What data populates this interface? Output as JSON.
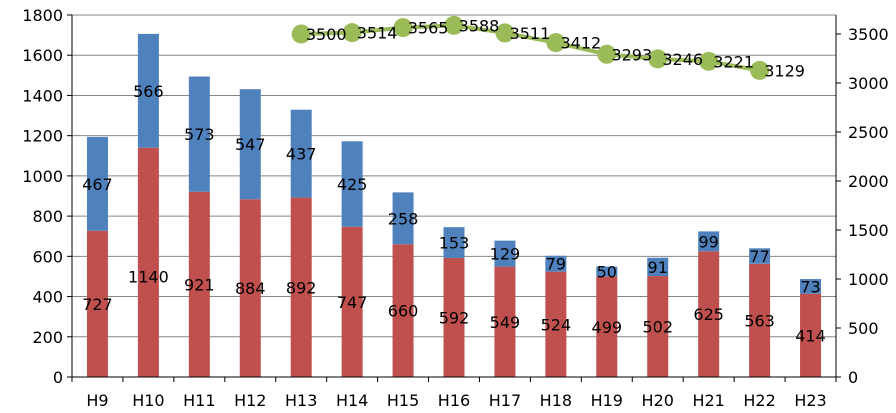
{
  "chart_data": {
    "type": "bar",
    "stacked": true,
    "categories": [
      "H9",
      "H10",
      "H11",
      "H12",
      "H13",
      "H14",
      "H15",
      "H16",
      "H17",
      "H18",
      "H19",
      "H20",
      "H21",
      "H22",
      "H23"
    ],
    "series": [
      {
        "values": [
          727,
          1140,
          921,
          884,
          892,
          747,
          660,
          592,
          549,
          524,
          499,
          502,
          625,
          563,
          414
        ],
        "color": "#C0504D",
        "axis": "left"
      },
      {
        "values": [
          467,
          566,
          573,
          547,
          437,
          425,
          258,
          153,
          129,
          79,
          50,
          91,
          99,
          77,
          73
        ],
        "color": "#4F81BD",
        "axis": "left"
      }
    ],
    "line_series": {
      "type": "line",
      "axis": "right",
      "color": "#9BBB59",
      "x": [
        "H13",
        "H14",
        "H15",
        "H16",
        "H17",
        "H18",
        "H19",
        "H20",
        "H21",
        "H22"
      ],
      "values": [
        3500,
        3514,
        3565,
        3588,
        3511,
        3412,
        3293,
        3246,
        3221,
        3129
      ]
    },
    "left_axis": {
      "ylim": [
        0,
        1800
      ],
      "ticks": [
        "0",
        "200",
        "400",
        "600",
        "800",
        "1000",
        "1200",
        "1400",
        "1600",
        "1800"
      ]
    },
    "right_axis": {
      "ylim": [
        0,
        3500
      ],
      "ticks": [
        "0",
        "500",
        "1000",
        "1500",
        "2000",
        "2500",
        "3000",
        "3500"
      ]
    },
    "grid": true,
    "legend": false
  }
}
